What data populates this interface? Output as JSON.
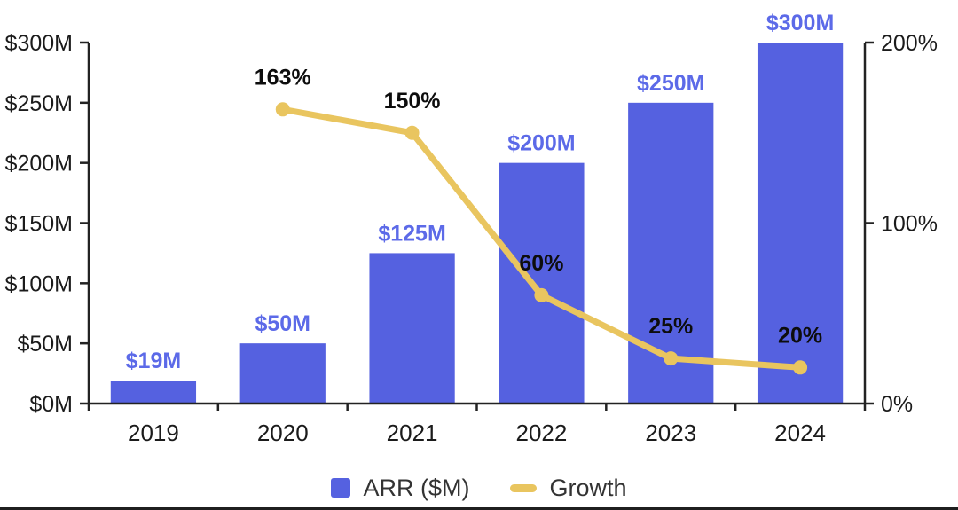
{
  "chart_data": {
    "type": "bar",
    "title": "",
    "xlabel": "",
    "ylabel": "",
    "categories": [
      "2019",
      "2020",
      "2021",
      "2022",
      "2023",
      "2024"
    ],
    "series": [
      {
        "name": "ARR ($M)",
        "kind": "bar",
        "axis": "left",
        "color": "#5561E0",
        "label_color": "#5C6AE8",
        "values": [
          19,
          50,
          125,
          200,
          250,
          300
        ],
        "labels": [
          "$19M",
          "$50M",
          "$125M",
          "$200M",
          "$250M",
          "$300M"
        ]
      },
      {
        "name": "Growth",
        "kind": "line",
        "axis": "right",
        "color": "#E9C55F",
        "label_color": "#0D0D0D",
        "values": [
          null,
          163,
          150,
          60,
          25,
          20
        ],
        "labels": [
          "",
          "163%",
          "150%",
          "60%",
          "25%",
          "20%"
        ]
      }
    ],
    "left_axis": {
      "min": 0,
      "max": 300,
      "ticks": [
        {
          "value": 0,
          "label": "$0M"
        },
        {
          "value": 50,
          "label": "$50M"
        },
        {
          "value": 100,
          "label": "$100M"
        },
        {
          "value": 150,
          "label": "$150M"
        },
        {
          "value": 200,
          "label": "$200M"
        },
        {
          "value": 250,
          "label": "$250M"
        },
        {
          "value": 300,
          "label": "$300M"
        }
      ]
    },
    "right_axis": {
      "min": 0,
      "max": 200,
      "ticks": [
        {
          "value": 0,
          "label": "0%"
        },
        {
          "value": 100,
          "label": "100%"
        },
        {
          "value": 200,
          "label": "200%"
        }
      ]
    },
    "legend": [
      {
        "label": "ARR ($M)",
        "color": "#5561E0",
        "marker": "square"
      },
      {
        "label": "Growth",
        "color": "#E9C55F",
        "marker": "line"
      }
    ],
    "grid": false,
    "legend_position": "bottom"
  }
}
